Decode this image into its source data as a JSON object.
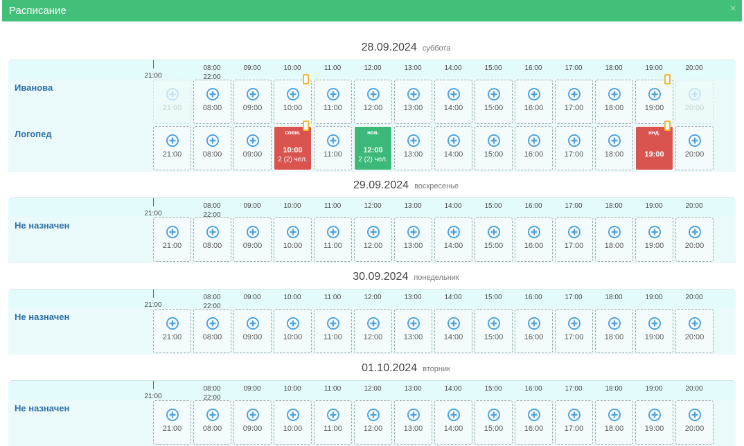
{
  "header": {
    "title": "Расписание",
    "close": "×"
  },
  "days": [
    {
      "date": "28.09.2024",
      "weekday": "суббота",
      "ruler_top": [
        "08:00",
        "09:00",
        "10:00",
        "11:00",
        "12:00",
        "13:00",
        "14:00",
        "15:00",
        "16:00",
        "17:00",
        "18:00",
        "19:00",
        "20:00"
      ],
      "ruler_bottom": [
        "21:00",
        "22:00"
      ],
      "rows": [
        {
          "name": "Иванова",
          "slots": [
            {
              "time": "21:00",
              "disabled": true
            },
            "08:00",
            "09:00",
            {
              "time": "10:00",
              "flag": true
            },
            "11:00",
            "12:00",
            "13:00",
            "14:00",
            "15:00",
            "16:00",
            "17:00",
            "18:00",
            {
              "time": "19:00",
              "flag": true
            },
            {
              "time": "20:00",
              "disabled": true
            }
          ]
        },
        {
          "name": "Логопед",
          "slots": [
            "21:00",
            "08:00",
            "09:00",
            {
              "tag": "совм.",
              "time": "10:00",
              "count": "2 (2) чел.",
              "color": "#d9534f",
              "flag": true
            },
            "11:00",
            {
              "tag": "нов.",
              "time": "12:00",
              "count": "2 (2) чел.",
              "color": "#3cb878"
            },
            "13:00",
            "14:00",
            "15:00",
            "16:00",
            "17:00",
            "18:00",
            {
              "tag": "инд.",
              "time": "19:00",
              "color": "#d9534f",
              "flag": true
            },
            "20:00"
          ]
        }
      ]
    },
    {
      "date": "29.09.2024",
      "weekday": "воскресенье",
      "ruler_top": [
        "08:00",
        "09:00",
        "10:00",
        "11:00",
        "12:00",
        "13:00",
        "14:00",
        "15:00",
        "16:00",
        "17:00",
        "18:00",
        "19:00",
        "20:00"
      ],
      "ruler_bottom": [
        "21:00",
        "22:00"
      ],
      "rows": [
        {
          "name": "Не назначен",
          "slots": [
            "21:00",
            "08:00",
            "09:00",
            "10:00",
            "11:00",
            "12:00",
            "13:00",
            "14:00",
            "15:00",
            "16:00",
            "17:00",
            "18:00",
            "19:00",
            "20:00"
          ]
        }
      ]
    },
    {
      "date": "30.09.2024",
      "weekday": "понедельник",
      "ruler_top": [
        "08:00",
        "09:00",
        "10:00",
        "11:00",
        "12:00",
        "13:00",
        "14:00",
        "15:00",
        "16:00",
        "17:00",
        "18:00",
        "19:00",
        "20:00"
      ],
      "ruler_bottom": [
        "21:00",
        "22:00"
      ],
      "rows": [
        {
          "name": "Не назначен",
          "slots": [
            "21:00",
            "08:00",
            "09:00",
            "10:00",
            "11:00",
            "12:00",
            "13:00",
            "14:00",
            "15:00",
            "16:00",
            "17:00",
            "18:00",
            "19:00",
            "20:00"
          ]
        }
      ]
    },
    {
      "date": "01.10.2024",
      "weekday": "вторник",
      "ruler_top": [
        "08:00",
        "09:00",
        "10:00",
        "11:00",
        "12:00",
        "13:00",
        "14:00",
        "15:00",
        "16:00",
        "17:00",
        "18:00",
        "19:00",
        "20:00"
      ],
      "ruler_bottom": [
        "21:00",
        "22:00"
      ],
      "rows": [
        {
          "name": "Не назначен",
          "slots": [
            "21:00",
            "08:00",
            "09:00",
            "10:00",
            "11:00",
            "12:00",
            "13:00",
            "14:00",
            "15:00",
            "16:00",
            "17:00",
            "18:00",
            "19:00",
            "20:00"
          ]
        }
      ]
    }
  ]
}
